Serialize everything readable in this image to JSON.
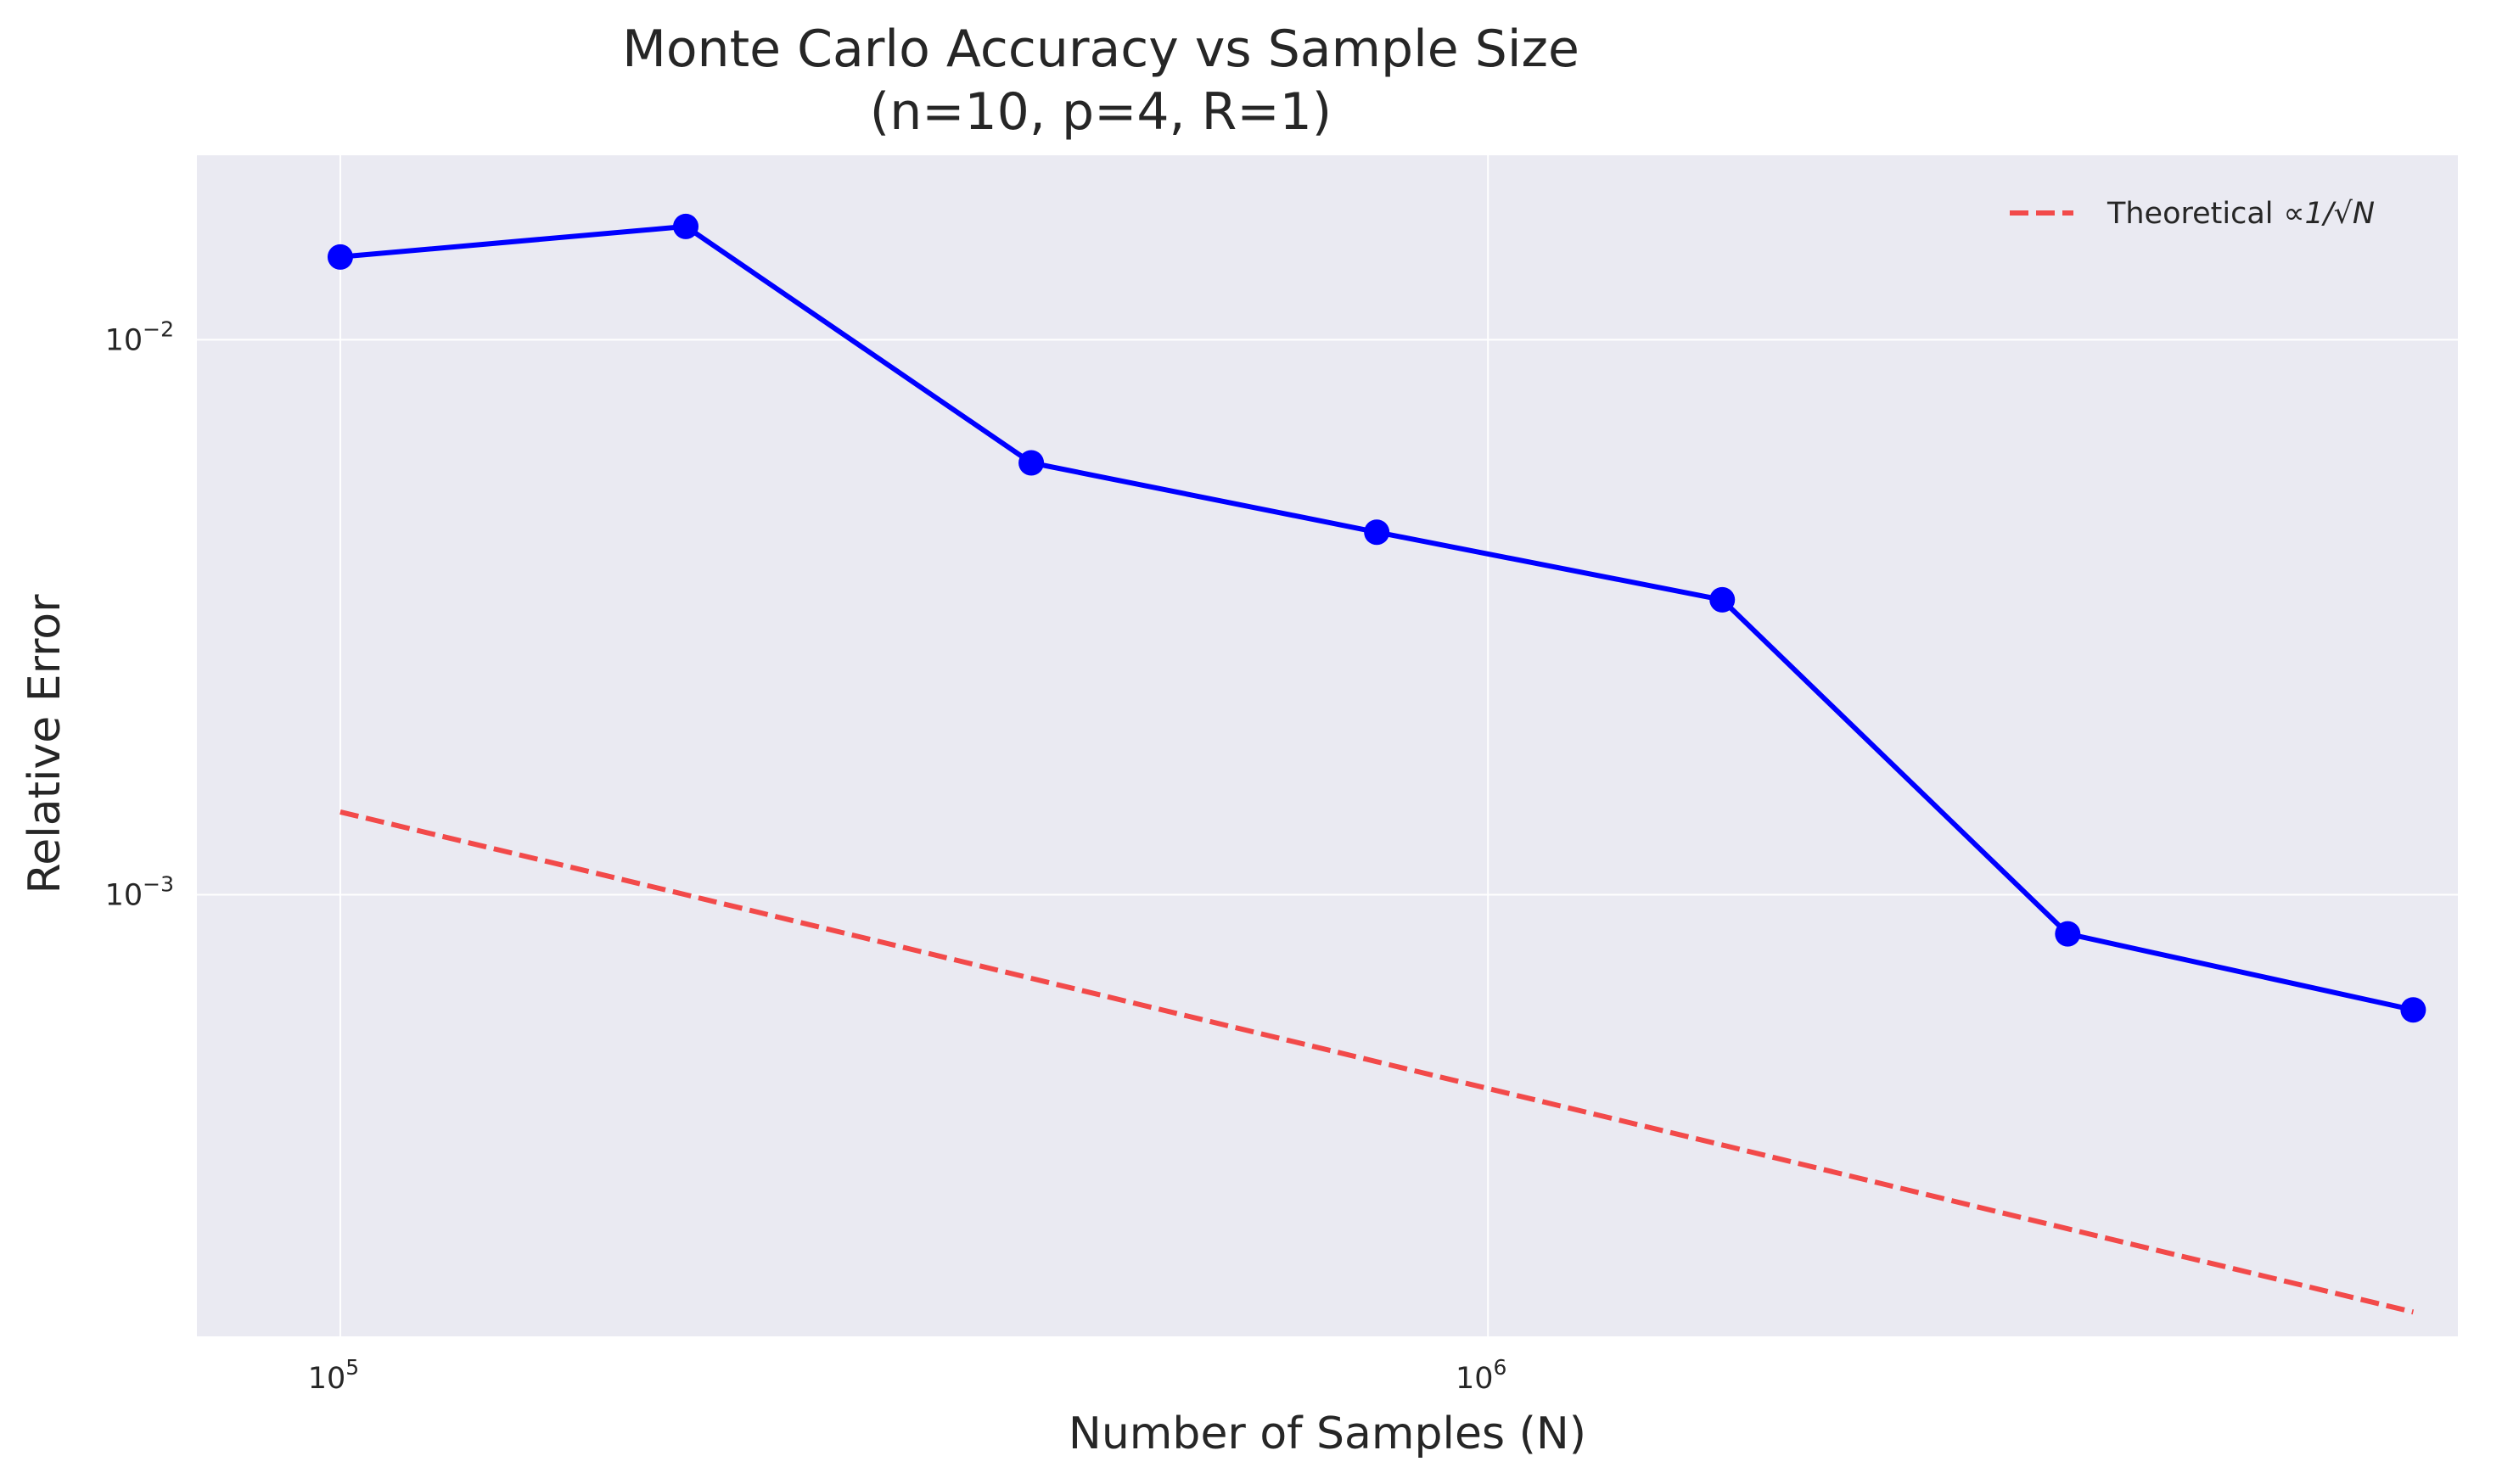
{
  "chart_data": {
    "type": "line",
    "title": "Monte Carlo Accuracy vs Sample Size",
    "subtitle": "(n=10, p=4, R=1)",
    "xlabel": "Number of Samples (N)",
    "ylabel": "Relative Error",
    "xscale": "log",
    "yscale": "log",
    "xlim": [
      75000,
      7000000
    ],
    "ylim": [
      0.00016,
      0.0215
    ],
    "grid": true,
    "legend_position": "top-right",
    "x_ticks": [
      {
        "base": "10",
        "exp": "5",
        "value": 100000
      },
      {
        "base": "10",
        "exp": "6",
        "value": 1000000
      }
    ],
    "y_ticks": [
      {
        "base": "10",
        "exp": "−2",
        "value": 0.01
      },
      {
        "base": "10",
        "exp": "−3",
        "value": 0.001
      }
    ],
    "series": [
      {
        "name": "",
        "color": "#0000ff",
        "style": "solid",
        "marker": "circle",
        "x": [
          100000,
          200000,
          400000,
          800000,
          1600000,
          3200000,
          6400000
        ],
        "y": [
          0.0141,
          0.016,
          0.006,
          0.0045,
          0.0034,
          0.00085,
          0.00062
        ]
      },
      {
        "name": "Theoretical $\\propto 1/\\sqrt{N}$",
        "legend_text": "Theoretical",
        "legend_math": "∝1/√N",
        "color": "#f24a4a",
        "style": "dashed",
        "marker": "none",
        "x": [
          100000,
          200000,
          400000,
          800000,
          1600000,
          3200000,
          6400000
        ],
        "y": [
          0.00141,
          0.001,
          0.000707,
          0.0005,
          0.000354,
          0.00025,
          0.000177
        ]
      }
    ]
  }
}
